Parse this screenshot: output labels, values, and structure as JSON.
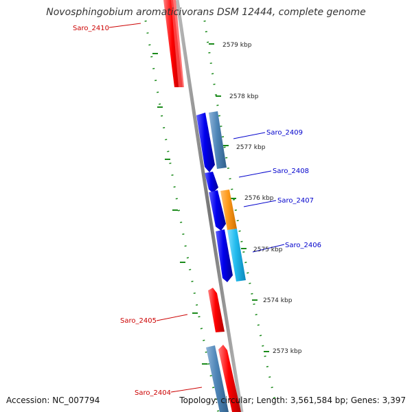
{
  "title": "Novosphingobium aromaticivorans DSM 12444, complete genome",
  "accession": "Accession: NC_007794",
  "summary": "Topology: circular; Length: 3,561,584 bp; Genes: 3,397",
  "colors": {
    "forward_gene": "#ff0000",
    "reverse_gene": "#0000dd",
    "cds_steel": "#4f86b8",
    "cds_orange": "#ff9a1a",
    "cds_cyan": "#22bbee",
    "backbone": "#888888",
    "gc_skew": "#1a8a1a",
    "reverse_label": "#0000cc",
    "forward_label": "#cc0000"
  },
  "ticks": [
    {
      "label": "2579 kbp"
    },
    {
      "label": "2578 kbp"
    },
    {
      "label": "2577 kbp"
    },
    {
      "label": "2576 kbp"
    },
    {
      "label": "2575 kbp"
    },
    {
      "label": "2574 kbp"
    },
    {
      "label": "2573 kbp"
    }
  ],
  "genes": [
    {
      "label": "Saro_2410",
      "strand": "forward"
    },
    {
      "label": "Saro_2409",
      "strand": "reverse"
    },
    {
      "label": "Saro_2408",
      "strand": "reverse"
    },
    {
      "label": "Saro_2407",
      "strand": "reverse"
    },
    {
      "label": "Saro_2406",
      "strand": "reverse"
    },
    {
      "label": "Saro_2405",
      "strand": "forward"
    },
    {
      "label": "Saro_2404",
      "strand": "forward"
    }
  ]
}
